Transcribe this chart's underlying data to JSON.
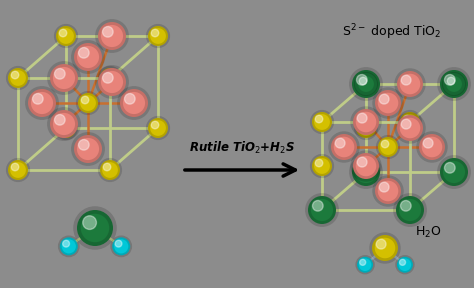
{
  "background_color": "#8c8c8c",
  "title_right": "S$^{2-}$ doped TiO$_2$",
  "arrow_label": "Rutile TiO$_2$+H$_2$S",
  "h2o_label": "H$_2$O",
  "colors": {
    "pink": "#E8837A",
    "yellow": "#D4C000",
    "green": "#1C7A3C",
    "cyan": "#00C8D8",
    "bond_light": "#BFCC88",
    "bond_orange": "#C87030",
    "bond_blue": "#9DB0C0",
    "bg": "#8c8c8c"
  },
  "figsize": [
    4.74,
    2.88
  ],
  "dpi": 100
}
